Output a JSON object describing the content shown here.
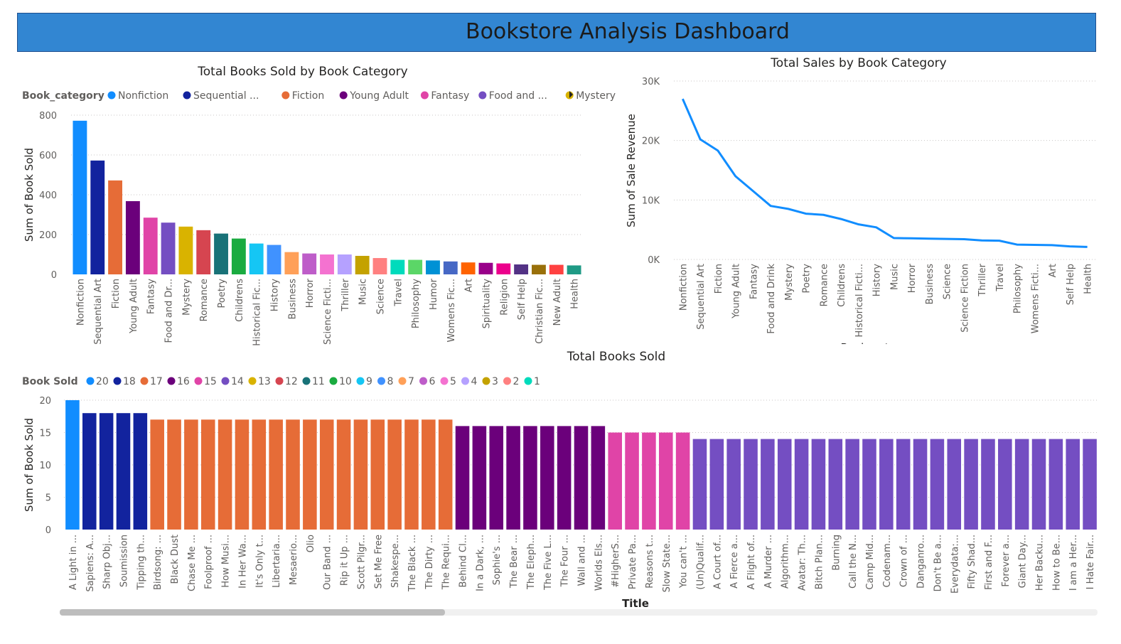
{
  "header": {
    "title": "Bookstore Analysis Dashboard",
    "bg_color": "#3286d2"
  },
  "charts": [
    {
      "id": "books-by-category",
      "title": "Total Books Sold by Book Category",
      "legend_title": "Book_category",
      "legend_labels": [
        "Nonfiction",
        "Sequential ...",
        "Fiction",
        "Young Adult",
        "Fantasy",
        "Food and ...",
        "Mystery"
      ],
      "ylabel": "Sum of Book Sold",
      "yticks": [
        "0",
        "200",
        "400",
        "600",
        "800"
      ]
    },
    {
      "id": "sales-by-category",
      "title": "Total Sales by Book Category",
      "ylabel": "Sum of Sale Revenue",
      "xlabel": "Book_category",
      "yticks": [
        "0K",
        "10K",
        "20K",
        "30K"
      ]
    },
    {
      "id": "books-sold-by-title",
      "title": "Total Books Sold",
      "legend_title": "Book Sold",
      "ylabel": "Sum of Book Sold",
      "xlabel": "Title",
      "yticks": [
        "0",
        "5",
        "10",
        "15",
        "20"
      ]
    }
  ],
  "chart_data": [
    {
      "type": "bar",
      "title": "Total Books Sold by Book Category",
      "ylabel": "Sum of Book Sold",
      "ylim": [
        0,
        800
      ],
      "legend_position": "top",
      "grid": true,
      "categories": [
        "Nonfiction",
        "Sequential Art",
        "Fiction",
        "Young Adult",
        "Fantasy",
        "Food and Dr...",
        "Mystery",
        "Romance",
        "Poetry",
        "Childrens",
        "Historical Fic...",
        "History",
        "Business",
        "Horror",
        "Science Ficti...",
        "Thriller",
        "Music",
        "Science",
        "Travel",
        "Philosophy",
        "Humor",
        "Womens Fic...",
        "Art",
        "Spirituality",
        "Religion",
        "Self Help",
        "Christian Fic...",
        "New Adult",
        "Health"
      ],
      "values": [
        772,
        572,
        472,
        368,
        285,
        260,
        240,
        222,
        205,
        180,
        155,
        148,
        112,
        105,
        100,
        100,
        93,
        82,
        73,
        73,
        70,
        65,
        60,
        58,
        55,
        50,
        48,
        48,
        45
      ],
      "colors": [
        "#118dff",
        "#12239e",
        "#e66c37",
        "#6b007b",
        "#e044a7",
        "#744ec2",
        "#d9b300",
        "#d64550",
        "#197278",
        "#1aab40",
        "#15c6f4",
        "#4092ff",
        "#ffa058",
        "#be5dc9",
        "#f472d0",
        "#b5a1ff",
        "#c4a200",
        "#ff8080",
        "#00dbbc",
        "#5bd667",
        "#0091d5",
        "#4668c5",
        "#ff6300",
        "#99008a",
        "#ec008c",
        "#533285",
        "#99700a",
        "#ff4141",
        "#1f9a85"
      ]
    },
    {
      "type": "line",
      "title": "Total Sales by Book Category",
      "ylabel": "Sum of Sale Revenue",
      "xlabel": "Book_category",
      "ylim": [
        0,
        30000
      ],
      "grid": true,
      "categories": [
        "Nonfiction",
        "Sequential Art",
        "Fiction",
        "Young Adult",
        "Fantasy",
        "Food and Drink",
        "Mystery",
        "Poetry",
        "Romance",
        "Childrens",
        "Historical Ficti...",
        "History",
        "Music",
        "Horror",
        "Business",
        "Science",
        "Science Fiction",
        "Thriller",
        "Travel",
        "Philosophy",
        "Womens Ficti...",
        "Art",
        "Self Help",
        "Health"
      ],
      "series": [
        {
          "values": [
            27000,
            20200,
            18300,
            14000,
            11500,
            9000,
            8500,
            7700,
            7500,
            6800,
            5900,
            5400,
            3600,
            3550,
            3500,
            3450,
            3400,
            3200,
            3150,
            2500,
            2450,
            2400,
            2200,
            2100
          ],
          "color": "#118dff"
        }
      ]
    },
    {
      "type": "bar",
      "title": "Total Books Sold",
      "ylabel": "Sum of Book Sold",
      "xlabel": "Title",
      "ylim": [
        0,
        20
      ],
      "grid": true,
      "legend_position": "top",
      "legend_values": [
        "20",
        "18",
        "17",
        "16",
        "15",
        "14",
        "13",
        "12",
        "11",
        "10",
        "9",
        "8",
        "7",
        "6",
        "5",
        "4",
        "3",
        "2",
        "1"
      ],
      "legend_colors": [
        "#118dff",
        "#12239e",
        "#e66c37",
        "#6b007b",
        "#e044a7",
        "#744ec2",
        "#d9b300",
        "#d64550",
        "#197278",
        "#1aab40",
        "#15c6f4",
        "#4092ff",
        "#ffa058",
        "#be5dc9",
        "#f472d0",
        "#b5a1ff",
        "#c4a200",
        "#ff8080",
        "#00dbbc"
      ],
      "categories": [
        "A Light in ...",
        "Sapiens: A...",
        "Sharp Obj...",
        "Soumission",
        "Tipping th...",
        "Birdsong: ...",
        "Black Dust",
        "Chase Me ...",
        "Foolproof ...",
        "How Musi...",
        "In Her Wa...",
        "It's Only t...",
        "Libertaria...",
        "Mesaerio...",
        "Olio",
        "Our Band ...",
        "Rip it Up ...",
        "Scott Pilgr...",
        "Set Me Free",
        "Shakespe...",
        "The Black ...",
        "The Dirty ...",
        "The Requi...",
        "Behind Cl...",
        "In a Dark, ...",
        "Sophie's ...",
        "The Bear ...",
        "The Eleph...",
        "The Five L...",
        "The Four ...",
        "Wall and ...",
        "Worlds Els...",
        "#HigherS...",
        "Private Pa...",
        "Reasons t...",
        "Slow State...",
        "You can't ...",
        "(Un)Qualif...",
        "A Court of...",
        "A Fierce a...",
        "A Flight of...",
        "A Murder ...",
        "Algorithm...",
        "Avatar: Th...",
        "Bitch Plan...",
        "Burning",
        "Call the N...",
        "Camp Mid...",
        "Codenam...",
        "Crown of ...",
        "Danganro...",
        "Don't Be a...",
        "Everydata:...",
        "Fifty Shad...",
        "First and F...",
        "Forever a...",
        "Giant Day...",
        "Her Backu...",
        "How to Be...",
        "I am a Her...",
        "I Hate Fair..."
      ],
      "values": [
        20,
        18,
        18,
        18,
        18,
        17,
        17,
        17,
        17,
        17,
        17,
        17,
        17,
        17,
        17,
        17,
        17,
        17,
        17,
        17,
        17,
        17,
        17,
        16,
        16,
        16,
        16,
        16,
        16,
        16,
        16,
        16,
        15,
        15,
        15,
        15,
        15,
        14,
        14,
        14,
        14,
        14,
        14,
        14,
        14,
        14,
        14,
        14,
        14,
        14,
        14,
        14,
        14,
        14,
        14,
        14,
        14,
        14,
        14,
        14,
        14
      ]
    }
  ]
}
